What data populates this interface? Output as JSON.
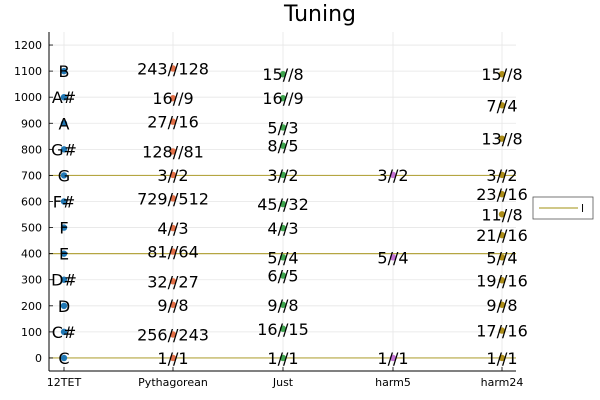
{
  "chart_data": {
    "type": "scatter",
    "title": "Tuning",
    "xlabel": "",
    "ylabel": "",
    "categories": [
      "12TET",
      "Pythagorean",
      "Just",
      "harm5",
      "harm24"
    ],
    "ylim": [
      -50,
      1250
    ],
    "y_ticks": [
      0,
      100,
      200,
      300,
      400,
      500,
      600,
      700,
      800,
      900,
      1000,
      1100,
      1200
    ],
    "grid": true,
    "legend_position": "right",
    "legend_entries": [
      "l"
    ],
    "horizontal_lines": [
      {
        "y": 0,
        "color": "#b5a642"
      },
      {
        "y": 400,
        "color": "#b5a642"
      },
      {
        "y": 700,
        "color": "#b5a642"
      }
    ],
    "series": [
      {
        "category": "12TET",
        "color": "#1f77b4",
        "points": [
          {
            "y": 0,
            "label": "C"
          },
          {
            "y": 100,
            "label": "C#"
          },
          {
            "y": 200,
            "label": "D"
          },
          {
            "y": 300,
            "label": "D#"
          },
          {
            "y": 400,
            "label": "E"
          },
          {
            "y": 500,
            "label": "F"
          },
          {
            "y": 600,
            "label": "F#"
          },
          {
            "y": 700,
            "label": "G"
          },
          {
            "y": 800,
            "label": "G#"
          },
          {
            "y": 900,
            "label": "A"
          },
          {
            "y": 1000,
            "label": "A#"
          },
          {
            "y": 1100,
            "label": "B"
          }
        ]
      },
      {
        "category": "Pythagorean",
        "color": "#e26f46",
        "points": [
          {
            "y": 0,
            "label": "1//1"
          },
          {
            "y": 90,
            "label": "256//243"
          },
          {
            "y": 204,
            "label": "9//8"
          },
          {
            "y": 294,
            "label": "32//27"
          },
          {
            "y": 408,
            "label": "81//64"
          },
          {
            "y": 498,
            "label": "4//3"
          },
          {
            "y": 612,
            "label": "729//512"
          },
          {
            "y": 702,
            "label": "3//2"
          },
          {
            "y": 792,
            "label": "128//81"
          },
          {
            "y": 906,
            "label": "27//16"
          },
          {
            "y": 996,
            "label": "16//9"
          },
          {
            "y": 1110,
            "label": "243//128"
          }
        ]
      },
      {
        "category": "Just",
        "color": "#3da44d",
        "points": [
          {
            "y": 0,
            "label": "1//1"
          },
          {
            "y": 112,
            "label": "16//15"
          },
          {
            "y": 204,
            "label": "9//8"
          },
          {
            "y": 316,
            "label": "6//5"
          },
          {
            "y": 386,
            "label": "5//4"
          },
          {
            "y": 498,
            "label": "4//3"
          },
          {
            "y": 590,
            "label": "45//32"
          },
          {
            "y": 702,
            "label": "3//2"
          },
          {
            "y": 814,
            "label": "8//5"
          },
          {
            "y": 884,
            "label": "5//3"
          },
          {
            "y": 996,
            "label": "16//9"
          },
          {
            "y": 1088,
            "label": "15//8"
          }
        ]
      },
      {
        "category": "harm5",
        "color": "#c271d2",
        "points": [
          {
            "y": 0,
            "label": "1//1"
          },
          {
            "y": 386,
            "label": "5//4"
          },
          {
            "y": 702,
            "label": "3//2"
          }
        ]
      },
      {
        "category": "harm24",
        "color": "#ac8d18",
        "points": [
          {
            "y": 0,
            "label": "1//1"
          },
          {
            "y": 105,
            "label": "17//16"
          },
          {
            "y": 204,
            "label": "9//8"
          },
          {
            "y": 298,
            "label": "19//16"
          },
          {
            "y": 386,
            "label": "5//4"
          },
          {
            "y": 471,
            "label": "21//16"
          },
          {
            "y": 551,
            "label": "11//8"
          },
          {
            "y": 628,
            "label": "23//16"
          },
          {
            "y": 702,
            "label": "3//2"
          },
          {
            "y": 841,
            "label": "13//8"
          },
          {
            "y": 969,
            "label": "7//4"
          },
          {
            "y": 1088,
            "label": "15//8"
          }
        ]
      }
    ]
  }
}
